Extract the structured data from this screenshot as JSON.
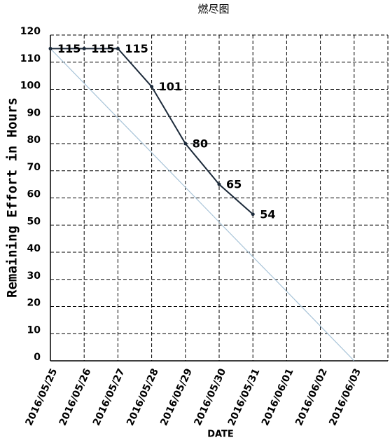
{
  "chart_data": {
    "type": "line",
    "title": "燃尽图",
    "x_label": "DATE",
    "y_label": "Remaining Effort in Hours",
    "categories": [
      "2016/05/25",
      "2016/05/26",
      "2016/05/27",
      "2016/05/28",
      "2016/05/29",
      "2016/05/30",
      "2016/05/31",
      "2016/06/01",
      "2016/06/02",
      "2016/06/03"
    ],
    "series": [
      {
        "color": "#1c2a3a",
        "values": [
          115,
          115,
          115,
          101,
          80,
          65,
          54,
          null,
          null,
          null
        ]
      },
      {
        "color": "#a8c4d8",
        "values": [
          115,
          102.2,
          89.4,
          76.7,
          63.9,
          51.1,
          38.3,
          25.6,
          12.8,
          0
        ]
      }
    ],
    "ylim": [
      0,
      120
    ],
    "yticks": [
      0,
      10,
      20,
      30,
      40,
      50,
      60,
      70,
      80,
      90,
      100,
      110,
      120
    ],
    "grid": true
  }
}
